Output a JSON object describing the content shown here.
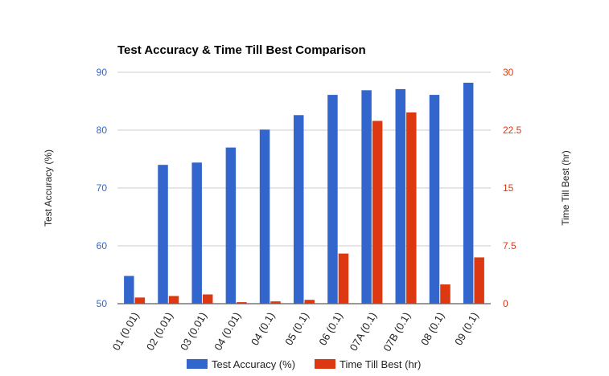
{
  "chart_data": {
    "type": "bar",
    "title": "Test Accuracy & Time Till Best Comparison",
    "categories": [
      "01 (0.01)",
      "02 (0.01)",
      "03 (0.01)",
      "04 (0.01)",
      "04 (0.1)",
      "05 (0.1)",
      "06 (0.1)",
      "07A (0.1)",
      "07B (0.1)",
      "08 (0.1)",
      "09 (0.1)"
    ],
    "series": [
      {
        "name": "Test Accuracy (%)",
        "axis": "left",
        "color": "#3366cc",
        "values": [
          54.8,
          74.0,
          74.4,
          77.0,
          80.1,
          82.6,
          86.1,
          86.9,
          87.1,
          86.1,
          88.2
        ]
      },
      {
        "name": "Time Till Best (hr)",
        "axis": "right",
        "color": "#dc3912",
        "values": [
          0.8,
          1.0,
          1.2,
          0.2,
          0.3,
          0.5,
          6.5,
          23.7,
          24.8,
          2.5,
          6.0
        ]
      }
    ],
    "ylabel": "Test Accuracy (%)",
    "ylim": [
      50,
      90
    ],
    "yticks": [
      "50",
      "60",
      "70",
      "80",
      "90"
    ],
    "y2label": "Time Till Best (hr)",
    "y2lim": [
      0,
      30
    ],
    "y2ticks": [
      "0",
      "7.5",
      "15",
      "22.5",
      "30"
    ],
    "grid": true,
    "legend": "bottom"
  }
}
